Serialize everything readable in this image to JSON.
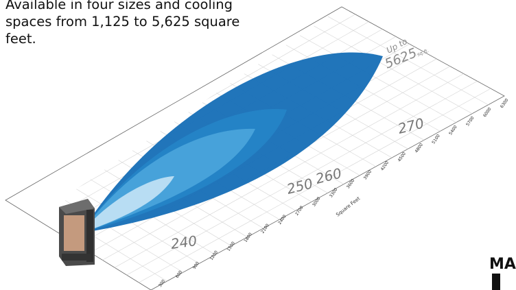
{
  "caption": "Available in four sizes and cooling spaces from 1,125 to 5,625 square feet.",
  "axis": {
    "label": "Square Feet",
    "ticks": [
      "300",
      "600",
      "900",
      "1200",
      "1500",
      "1800",
      "2100",
      "2400",
      "2700",
      "3000",
      "3300",
      "3600",
      "3900",
      "4200",
      "4500",
      "4800",
      "5100",
      "5400",
      "5700",
      "6000",
      "6300"
    ]
  },
  "callout": {
    "line1": "Up to",
    "value": "5625",
    "unit": "sq.ft."
  },
  "models": [
    {
      "label": "240",
      "max_sqft": 1125
    },
    {
      "label": "250",
      "max_sqft": 2250
    },
    {
      "label": "260",
      "max_sqft": 3375
    },
    {
      "label": "270",
      "max_sqft": 5625
    }
  ],
  "colors": {
    "model_270": "#1a71b8",
    "model_260": "#2584c6",
    "model_250": "#4aa3db",
    "model_240": "#bfe0f4",
    "unit_body": "#4a4a4a",
    "unit_panel": "#c49a7e"
  },
  "logo": {
    "text": "MA"
  }
}
